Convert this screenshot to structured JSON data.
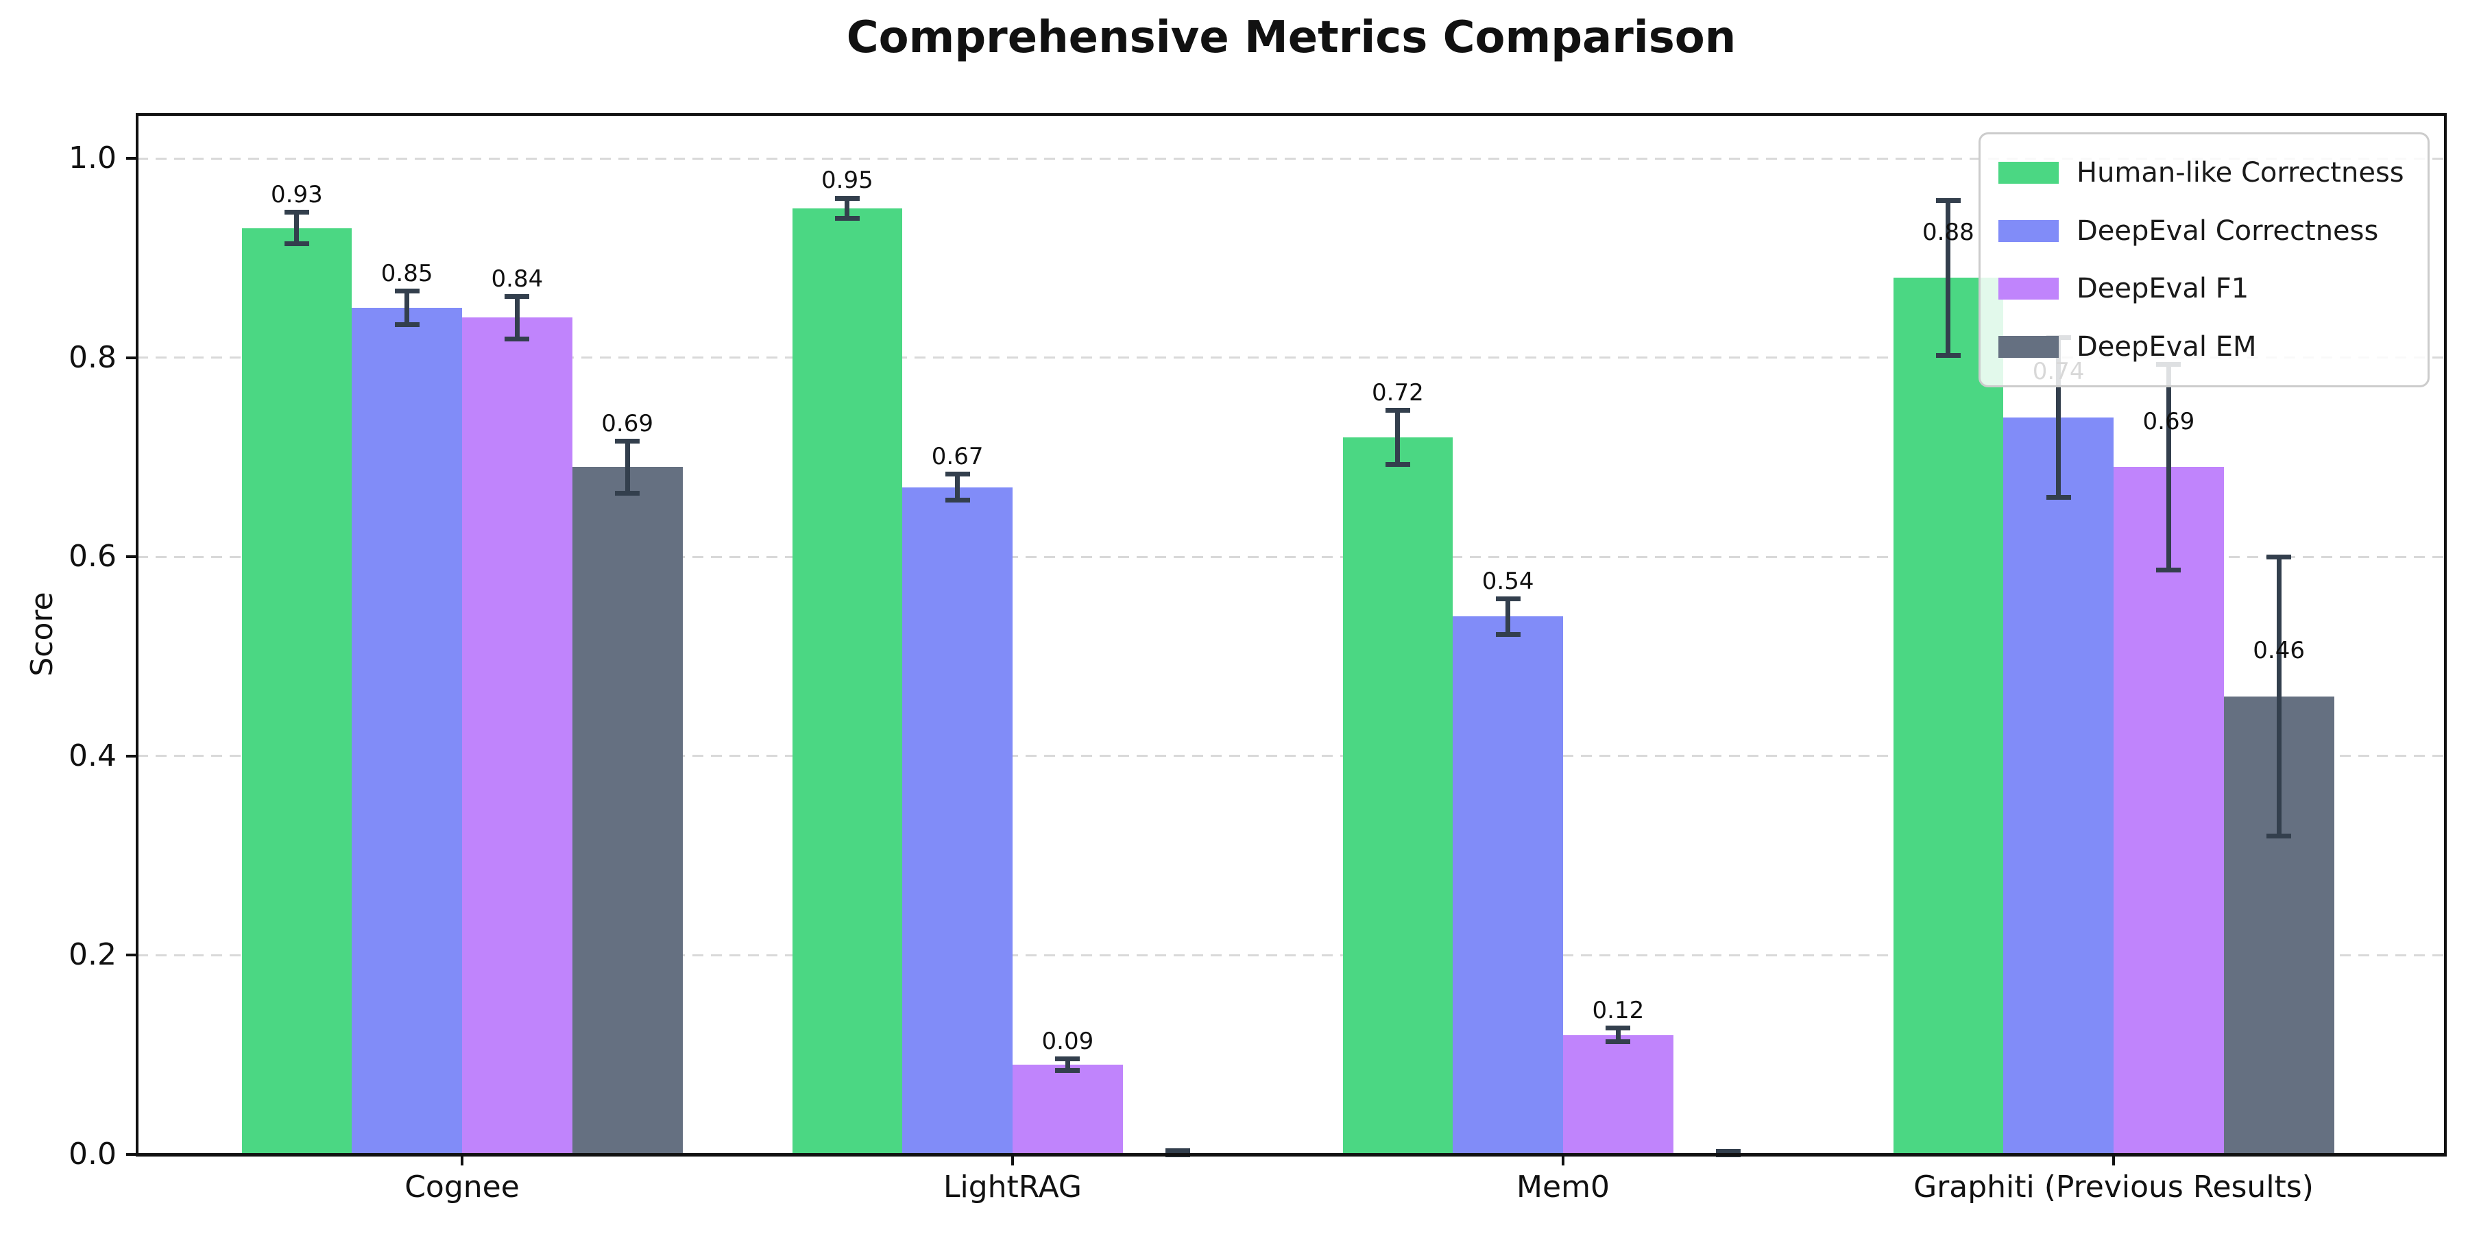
{
  "chart_data": {
    "type": "bar",
    "title": "Comprehensive Metrics Comparison",
    "ylabel": "Score",
    "xlabel": "",
    "categories": [
      "Cognee",
      "LightRAG",
      "Mem0",
      "Graphiti (Previous Results)"
    ],
    "series": [
      {
        "name": "Human-like Correctness",
        "color": "#4bd783",
        "values": [
          0.93,
          0.95,
          0.72,
          0.88
        ],
        "errors": [
          0.016,
          0.01,
          0.027,
          0.078
        ],
        "labels": [
          "0.93",
          "0.95",
          "0.72",
          "0.88"
        ]
      },
      {
        "name": "DeepEval Correctness",
        "color": "#818cf8",
        "values": [
          0.85,
          0.67,
          0.54,
          0.74
        ],
        "errors": [
          0.017,
          0.013,
          0.018,
          0.08
        ],
        "labels": [
          "0.85",
          "0.67",
          "0.54",
          "0.74"
        ]
      },
      {
        "name": "DeepEval F1",
        "color": "#c084fc",
        "values": [
          0.84,
          0.09,
          0.12,
          0.69
        ],
        "errors": [
          0.021,
          0.006,
          0.007,
          0.103
        ],
        "labels": [
          "0.84",
          "0.09",
          "0.12",
          "0.69"
        ]
      },
      {
        "name": "DeepEval EM",
        "color": "#657081",
        "values": [
          0.69,
          0.0,
          0.0,
          0.46
        ],
        "errors": [
          0.026,
          0.004,
          0.003,
          0.14
        ],
        "labels": [
          "0.69",
          "",
          "",
          "0.46"
        ]
      }
    ],
    "yticks": {
      "values": [
        0.0,
        0.2,
        0.4,
        0.6,
        0.8,
        1.0
      ],
      "labels": [
        "0.0",
        "0.2",
        "0.4",
        "0.6",
        "0.8",
        "1.0"
      ]
    },
    "ylim": [
      0,
      1.045
    ],
    "grid": "horizontal-dashed",
    "legend": {
      "position": "upper-right",
      "entries": [
        "Human-like Correctness",
        "DeepEval Correctness",
        "DeepEval F1",
        "DeepEval EM"
      ]
    },
    "colors": {
      "error_bar": "#333f4d",
      "grid": "#d9d9d9",
      "axis": "#111111",
      "text": "#111111",
      "background": "#ffffff"
    }
  }
}
